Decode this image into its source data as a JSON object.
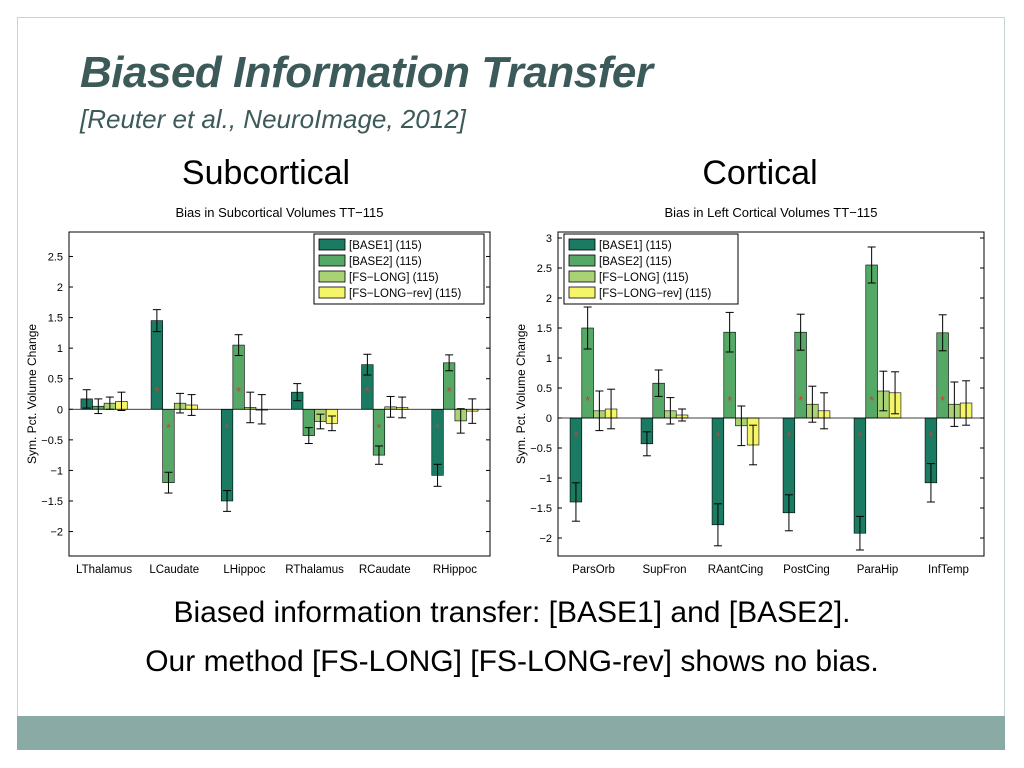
{
  "slide": {
    "title": "Biased Information Transfer",
    "subtitle": "[Reuter et al., NeuroImage, 2012]",
    "left_heading": "Subcortical",
    "right_heading": "Cortical",
    "caption_line1": "Biased information transfer: [BASE1] and [BASE2].",
    "caption_line2": "Our method [FS-LONG] [FS-LONG-rev] shows no bias."
  },
  "colors": {
    "BASE1": "#1b7a62",
    "BASE2": "#56a866",
    "FS-LONG": "#a8d273",
    "FS-LONG-rev": "#f5f56a",
    "star": "#d23c2c",
    "title": "#3d5a5a",
    "footer": "#8aaaa6"
  },
  "chart_data": [
    {
      "type": "bar",
      "title": "Bias in Subcortical Volumes TT−115",
      "ylabel": "Sym. Pct. Volume Change",
      "xlabel": "",
      "ylim": [
        -2.4,
        2.9
      ],
      "yticks": [
        -2,
        -1.5,
        -1,
        -0.5,
        0,
        0.5,
        1,
        1.5,
        2,
        2.5
      ],
      "ytick_labels": [
        "−2",
        "−1.5",
        "−1",
        "−0.5",
        "0",
        "0.5",
        "1",
        "1.5",
        "2",
        "2.5"
      ],
      "categories": [
        "LThalamus",
        "LCaudate",
        "LHippoc",
        "RThalamus",
        "RCaudate",
        "RHippoc"
      ],
      "legend_position": "top-right",
      "series": [
        {
          "name": "[BASE1] (115)",
          "values": [
            0.17,
            1.45,
            -1.5,
            0.28,
            0.73,
            -1.08
          ],
          "errors": [
            0.15,
            0.18,
            0.17,
            0.14,
            0.17,
            0.18
          ]
        },
        {
          "name": "[BASE2] (115)",
          "values": [
            0.05,
            -1.2,
            1.05,
            -0.43,
            -0.75,
            0.76
          ],
          "errors": [
            0.12,
            0.17,
            0.17,
            0.13,
            0.15,
            0.13
          ]
        },
        {
          "name": "[FS−LONG] (115)",
          "values": [
            0.1,
            0.1,
            0.03,
            -0.2,
            0.04,
            -0.19
          ],
          "errors": [
            0.1,
            0.16,
            0.25,
            0.12,
            0.17,
            0.2
          ]
        },
        {
          "name": "[FS−LONG−rev] (115)",
          "values": [
            0.13,
            0.07,
            0.0,
            -0.23,
            0.03,
            -0.03
          ],
          "errors": [
            0.15,
            0.17,
            0.24,
            0.12,
            0.17,
            0.2
          ]
        }
      ],
      "significance": [
        {
          "category": 0,
          "series": [],
          "y": []
        },
        {
          "category": 1,
          "series": [
            0,
            1
          ],
          "y": [
            0.3,
            -0.3
          ]
        },
        {
          "category": 2,
          "series": [
            0,
            1
          ],
          "y": [
            -0.3,
            0.3
          ]
        },
        {
          "category": 3,
          "series": [],
          "y": []
        },
        {
          "category": 4,
          "series": [
            0,
            1
          ],
          "y": [
            0.3,
            -0.3
          ]
        },
        {
          "category": 5,
          "series": [
            0,
            1
          ],
          "y": [
            -0.3,
            0.3
          ]
        }
      ]
    },
    {
      "type": "bar",
      "title": "Bias in Left Cortical Volumes TT−115",
      "ylabel": "Sym. Pct. Volume Change",
      "xlabel": "",
      "ylim": [
        -2.3,
        3.1
      ],
      "yticks": [
        -2,
        -1.5,
        -1,
        -0.5,
        0,
        0.5,
        1,
        1.5,
        2,
        2.5,
        3
      ],
      "ytick_labels": [
        "−2",
        "−1.5",
        "−1",
        "−0.5",
        "0",
        "0.5",
        "1",
        "1.5",
        "2",
        "2.5",
        "3"
      ],
      "categories": [
        "ParsOrb",
        "SupFron",
        "RAantCing",
        "PostCing",
        "ParaHip",
        "InfTemp"
      ],
      "legend_position": "top-left",
      "series": [
        {
          "name": "[BASE1] (115)",
          "values": [
            -1.4,
            -0.43,
            -1.78,
            -1.58,
            -1.92,
            -1.08
          ],
          "errors": [
            0.32,
            0.2,
            0.35,
            0.3,
            0.28,
            0.32
          ]
        },
        {
          "name": "[BASE2] (115)",
          "values": [
            1.5,
            0.58,
            1.43,
            1.43,
            2.55,
            1.42
          ],
          "errors": [
            0.35,
            0.22,
            0.33,
            0.3,
            0.3,
            0.3
          ]
        },
        {
          "name": "[FS−LONG] (115)",
          "values": [
            0.12,
            0.12,
            -0.13,
            0.23,
            0.45,
            0.23
          ],
          "errors": [
            0.33,
            0.22,
            0.33,
            0.3,
            0.33,
            0.37
          ]
        },
        {
          "name": "[FS−LONG−rev] (115)",
          "values": [
            0.15,
            0.05,
            -0.45,
            0.12,
            0.42,
            0.25
          ],
          "errors": [
            0.33,
            0.1,
            0.33,
            0.3,
            0.35,
            0.37
          ]
        }
      ],
      "significance": [
        {
          "category": 0,
          "series": [
            0,
            1
          ],
          "y": [
            -0.3,
            0.3
          ]
        },
        {
          "category": 1,
          "series": [],
          "y": []
        },
        {
          "category": 2,
          "series": [
            0,
            1
          ],
          "y": [
            -0.3,
            0.3
          ]
        },
        {
          "category": 3,
          "series": [
            0,
            1
          ],
          "y": [
            -0.3,
            0.3
          ]
        },
        {
          "category": 4,
          "series": [
            0,
            1
          ],
          "y": [
            -0.3,
            0.3
          ]
        },
        {
          "category": 5,
          "series": [
            0,
            1
          ],
          "y": [
            -0.3,
            0.3
          ]
        }
      ]
    }
  ]
}
